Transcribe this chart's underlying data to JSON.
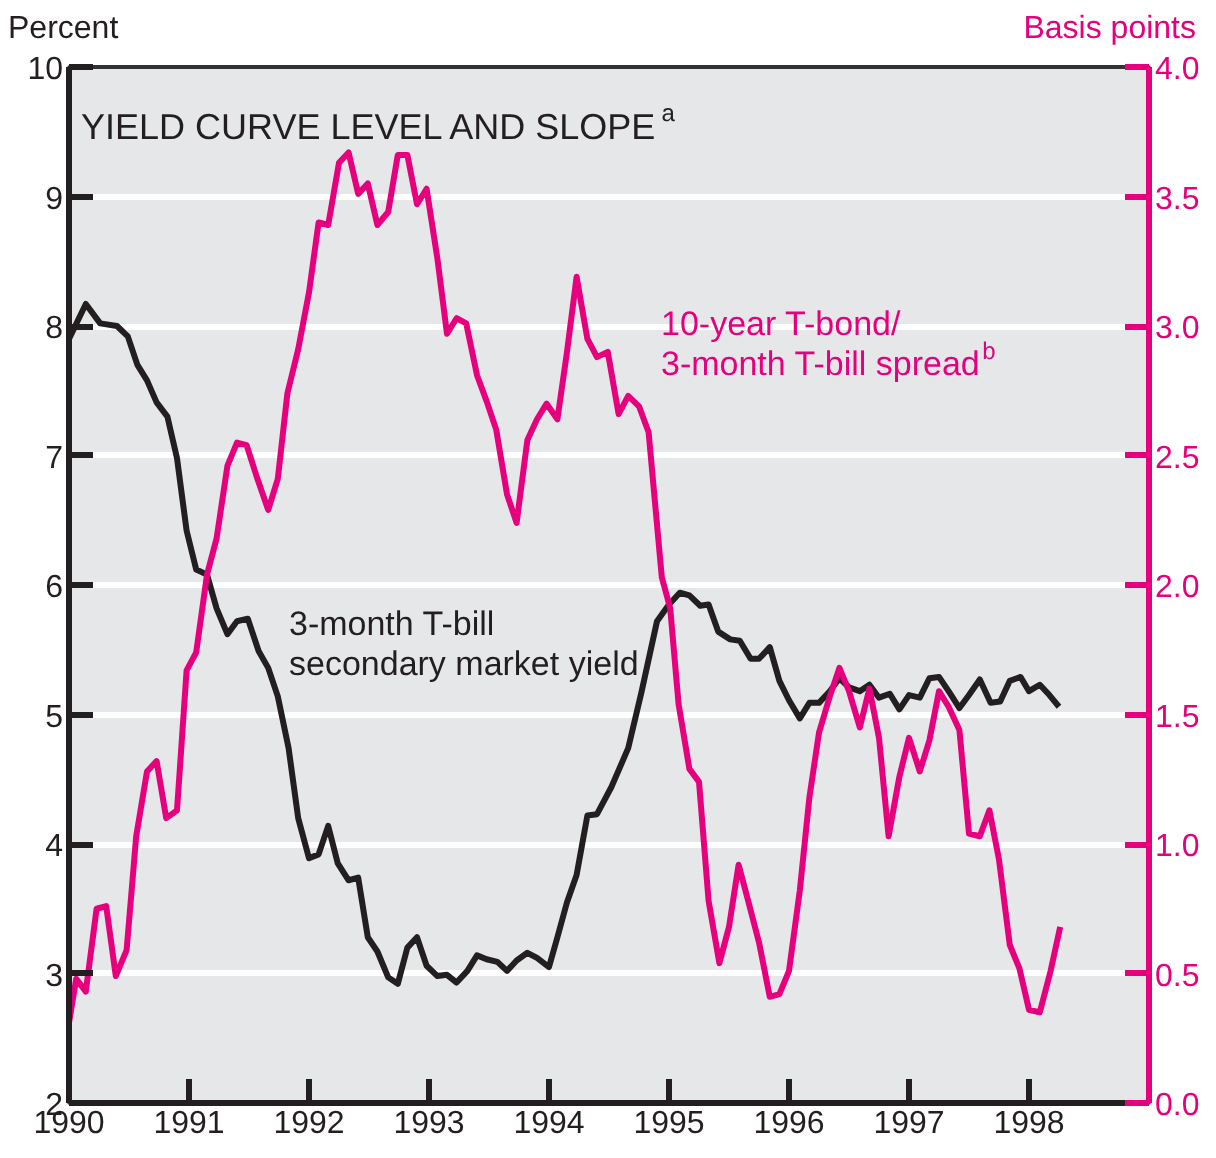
{
  "chart_data": {
    "type": "line",
    "title": "YIELD CURVE LEVEL AND SLOPE$^{a}$",
    "ylabel": "Percent",
    "y2label": "Basis points",
    "xlim": [
      1990,
      1999
    ],
    "xticks": [
      1990,
      1991,
      1992,
      1993,
      1994,
      1995,
      1996,
      1997,
      1998
    ],
    "ylim": [
      2,
      10
    ],
    "yticks": [
      2,
      3,
      4,
      5,
      6,
      7,
      8,
      9,
      10
    ],
    "y2lim": [
      0,
      4
    ],
    "y2ticks": [
      {
        "value": 0,
        "label": "0.0"
      },
      {
        "value": 0.5,
        "label": "0.5"
      },
      {
        "value": 1,
        "label": "1.0"
      },
      {
        "value": 1.5,
        "label": "1.5"
      },
      {
        "value": 2,
        "label": "2.0"
      },
      {
        "value": 2.5,
        "label": "2.5"
      },
      {
        "value": 3,
        "label": "3.0"
      },
      {
        "value": 3.5,
        "label": "3.5"
      },
      {
        "value": 4,
        "label": "4.0"
      }
    ],
    "grid": "y",
    "line_style": "solid",
    "marker": "none",
    "series": [
      {
        "name": "3-month T-bill\nsecondary market yield",
        "color": "#231f20",
        "axis": "y",
        "x": [
          1990.0,
          1990.14,
          1990.26,
          1990.4,
          1990.49,
          1990.57,
          1990.65,
          1990.73,
          1990.82,
          1990.9,
          1990.98,
          1991.06,
          1991.15,
          1991.23,
          1991.32,
          1991.4,
          1991.49,
          1991.58,
          1991.66,
          1991.74,
          1991.83,
          1991.91,
          1992.0,
          1992.08,
          1992.16,
          1992.24,
          1992.33,
          1992.41,
          1992.49,
          1992.57,
          1992.66,
          1992.74,
          1992.82,
          1992.9,
          1992.98,
          1993.07,
          1993.15,
          1993.23,
          1993.32,
          1993.4,
          1993.48,
          1993.57,
          1993.65,
          1993.73,
          1993.82,
          1993.9,
          1994.0,
          1994.07,
          1994.15,
          1994.23,
          1994.32,
          1994.4,
          1994.52,
          1994.66,
          1994.77,
          1994.9,
          1995.0,
          1995.09,
          1995.17,
          1995.26,
          1995.33,
          1995.41,
          1995.51,
          1995.59,
          1995.68,
          1995.75,
          1995.84,
          1995.92,
          1996.0,
          1996.09,
          1996.17,
          1996.25,
          1996.34,
          1996.42,
          1996.5,
          1996.59,
          1996.67,
          1996.75,
          1996.84,
          1996.92,
          1997.0,
          1997.09,
          1997.17,
          1997.25,
          1997.33,
          1997.42,
          1997.5,
          1997.59,
          1997.68,
          1997.76,
          1997.84,
          1997.93,
          1998.0,
          1998.09,
          1998.17,
          1998.25
        ],
        "values": [
          7.9,
          8.17,
          8.02,
          8.0,
          7.92,
          7.7,
          7.58,
          7.41,
          7.3,
          6.98,
          6.42,
          6.12,
          6.08,
          5.82,
          5.62,
          5.72,
          5.74,
          5.49,
          5.36,
          5.14,
          4.74,
          4.2,
          3.89,
          3.92,
          4.14,
          3.85,
          3.72,
          3.74,
          3.28,
          3.17,
          2.97,
          2.92,
          3.2,
          3.28,
          3.06,
          2.98,
          2.99,
          2.93,
          3.02,
          3.14,
          3.11,
          3.09,
          3.02,
          3.1,
          3.16,
          3.12,
          3.05,
          3.28,
          3.55,
          3.76,
          4.22,
          4.23,
          4.44,
          4.74,
          5.17,
          5.72,
          5.85,
          5.94,
          5.92,
          5.84,
          5.85,
          5.64,
          5.58,
          5.57,
          5.43,
          5.43,
          5.52,
          5.26,
          5.11,
          4.97,
          5.09,
          5.09,
          5.18,
          5.28,
          5.21,
          5.18,
          5.23,
          5.13,
          5.16,
          5.04,
          5.15,
          5.13,
          5.28,
          5.29,
          5.18,
          5.05,
          5.15,
          5.27,
          5.09,
          5.1,
          5.26,
          5.29,
          5.18,
          5.23,
          5.15,
          5.06
        ]
      },
      {
        "name": "10-year T-bond/\n3-month T-bill spread$^{b}$",
        "color": "#e6007e",
        "axis": "y2",
        "x": [
          1990.0,
          1990.06,
          1990.14,
          1990.23,
          1990.31,
          1990.39,
          1990.48,
          1990.56,
          1990.65,
          1990.73,
          1990.81,
          1990.9,
          1990.98,
          1991.06,
          1991.15,
          1991.23,
          1991.32,
          1991.4,
          1991.48,
          1991.57,
          1991.66,
          1991.74,
          1991.82,
          1991.91,
          1992.0,
          1992.08,
          1992.16,
          1992.25,
          1992.33,
          1992.41,
          1992.49,
          1992.57,
          1992.66,
          1992.74,
          1992.82,
          1992.9,
          1992.98,
          1993.07,
          1993.15,
          1993.23,
          1993.31,
          1993.4,
          1993.48,
          1993.56,
          1993.65,
          1993.73,
          1993.82,
          1993.9,
          1993.98,
          1994.07,
          1994.15,
          1994.23,
          1994.32,
          1994.4,
          1994.49,
          1994.58,
          1994.66,
          1994.75,
          1994.83,
          1994.94,
          1995.01,
          1995.08,
          1995.17,
          1995.25,
          1995.33,
          1995.42,
          1995.5,
          1995.58,
          1995.66,
          1995.75,
          1995.84,
          1995.92,
          1996.0,
          1996.09,
          1996.17,
          1996.25,
          1996.34,
          1996.42,
          1996.5,
          1996.59,
          1996.67,
          1996.75,
          1996.83,
          1996.92,
          1997.0,
          1997.09,
          1997.17,
          1997.25,
          1997.33,
          1997.42,
          1997.5,
          1997.59,
          1997.67,
          1997.75,
          1997.84,
          1997.92,
          1998.0,
          1998.09,
          1998.18,
          1998.26
        ],
        "values": [
          0.31,
          0.48,
          0.43,
          0.75,
          0.76,
          0.49,
          0.59,
          1.03,
          1.28,
          1.32,
          1.1,
          1.13,
          1.67,
          1.74,
          2.04,
          2.18,
          2.46,
          2.55,
          2.54,
          2.41,
          2.29,
          2.41,
          2.74,
          2.91,
          3.13,
          3.4,
          3.39,
          3.63,
          3.67,
          3.51,
          3.55,
          3.39,
          3.44,
          3.66,
          3.66,
          3.47,
          3.53,
          3.26,
          2.97,
          3.03,
          3.01,
          2.81,
          2.71,
          2.6,
          2.35,
          2.24,
          2.56,
          2.64,
          2.7,
          2.64,
          2.9,
          3.19,
          2.95,
          2.88,
          2.9,
          2.66,
          2.73,
          2.69,
          2.59,
          2.03,
          1.91,
          1.54,
          1.29,
          1.24,
          0.78,
          0.54,
          0.68,
          0.92,
          0.78,
          0.62,
          0.41,
          0.42,
          0.51,
          0.82,
          1.18,
          1.43,
          1.57,
          1.68,
          1.59,
          1.45,
          1.6,
          1.41,
          1.03,
          1.26,
          1.41,
          1.28,
          1.4,
          1.59,
          1.53,
          1.44,
          1.04,
          1.03,
          1.13,
          0.94,
          0.61,
          0.52,
          0.36,
          0.35,
          0.51,
          0.68
        ]
      }
    ]
  }
}
